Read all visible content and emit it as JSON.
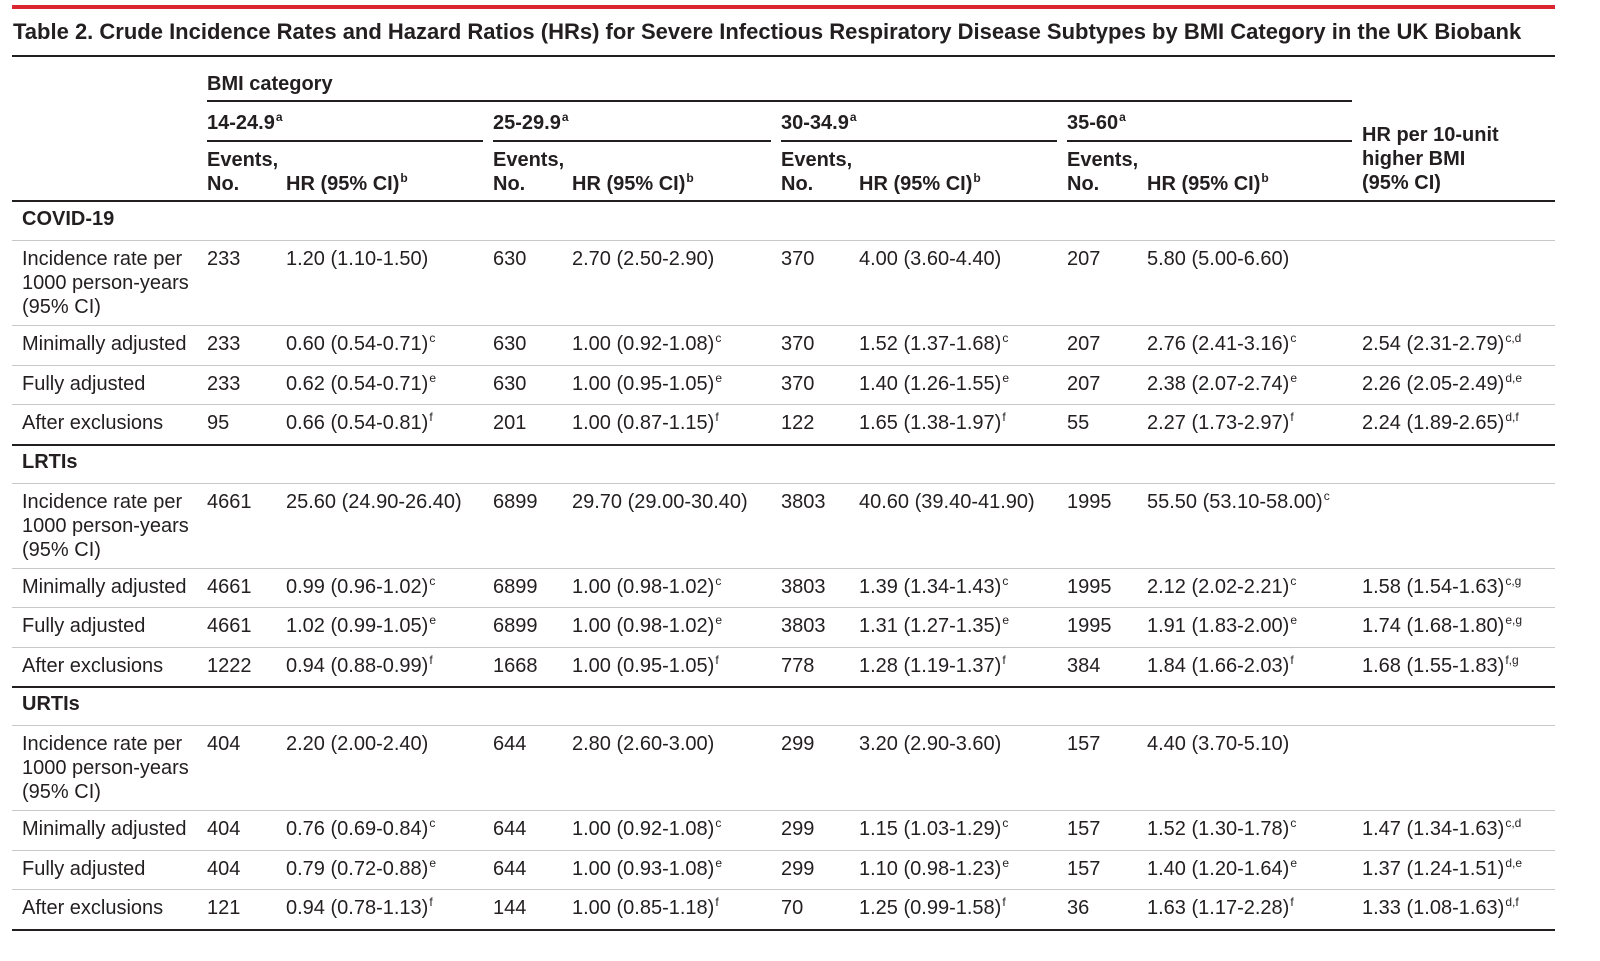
{
  "title": "Table 2. Crude Incidence Rates and Hazard Ratios (HRs) for Severe Infectious Respiratory Disease Subtypes by BMI Category in the UK Biobank",
  "header": {
    "group": "BMI category",
    "categories": [
      {
        "text": "14-24.9",
        "sup": "a"
      },
      {
        "text": "25-29.9",
        "sup": "a"
      },
      {
        "text": "30-34.9",
        "sup": "a"
      },
      {
        "text": "35-60",
        "sup": "a"
      }
    ],
    "events_label": [
      "Events,",
      "No."
    ],
    "hr_label": {
      "text": "HR (95% CI)",
      "sup": "b"
    },
    "trend_label": [
      "HR per 10-unit",
      "higher BMI",
      "(95% CI)"
    ]
  },
  "sections": [
    {
      "name": "COVID-19",
      "rows": [
        {
          "label": "Incidence rate per 1000 person-years (95% CI)",
          "values": [
            {
              "events": 233,
              "hr": "1.20 (1.10-1.50)"
            },
            {
              "events": 630,
              "hr": "2.70 (2.50-2.90)"
            },
            {
              "events": 370,
              "hr": "4.00 (3.60-4.40)"
            },
            {
              "events": 207,
              "hr": "5.80 (5.00-6.60)"
            }
          ]
        },
        {
          "label": "Minimally adjusted",
          "values": [
            {
              "events": 233,
              "hr": "0.60 (0.54-0.71)",
              "sup": "c"
            },
            {
              "events": 630,
              "hr": "1.00 (0.92-1.08)",
              "sup": "c"
            },
            {
              "events": 370,
              "hr": "1.52 (1.37-1.68)",
              "sup": "c"
            },
            {
              "events": 207,
              "hr": "2.76 (2.41-3.16)",
              "sup": "c"
            }
          ],
          "trend": {
            "hr": "2.54 (2.31-2.79)",
            "sup": "c,d"
          }
        },
        {
          "label": "Fully adjusted",
          "values": [
            {
              "events": 233,
              "hr": "0.62 (0.54-0.71)",
              "sup": "e"
            },
            {
              "events": 630,
              "hr": "1.00 (0.95-1.05)",
              "sup": "e"
            },
            {
              "events": 370,
              "hr": "1.40 (1.26-1.55)",
              "sup": "e"
            },
            {
              "events": 207,
              "hr": "2.38 (2.07-2.74)",
              "sup": "e"
            }
          ],
          "trend": {
            "hr": "2.26 (2.05-2.49)",
            "sup": "d,e"
          }
        },
        {
          "label": "After exclusions",
          "values": [
            {
              "events": 95,
              "hr": "0.66 (0.54-0.81)",
              "sup": "f"
            },
            {
              "events": 201,
              "hr": "1.00 (0.87-1.15)",
              "sup": "f"
            },
            {
              "events": 122,
              "hr": "1.65 (1.38-1.97)",
              "sup": "f"
            },
            {
              "events": 55,
              "hr": "2.27 (1.73-2.97)",
              "sup": "f"
            }
          ],
          "trend": {
            "hr": "2.24 (1.89-2.65)",
            "sup": "d,f"
          }
        }
      ]
    },
    {
      "name": "LRTIs",
      "rows": [
        {
          "label": "Incidence rate per 1000 person-years (95% CI)",
          "values": [
            {
              "events": 4661,
              "hr": "25.60 (24.90-26.40)"
            },
            {
              "events": 6899,
              "hr": "29.70 (29.00-30.40)"
            },
            {
              "events": 3803,
              "hr": "40.60 (39.40-41.90)"
            },
            {
              "events": 1995,
              "hr": "55.50 (53.10-58.00)",
              "sup": "c"
            }
          ]
        },
        {
          "label": "Minimally adjusted",
          "values": [
            {
              "events": 4661,
              "hr": "0.99 (0.96-1.02)",
              "sup": "c"
            },
            {
              "events": 6899,
              "hr": "1.00 (0.98-1.02)",
              "sup": "c"
            },
            {
              "events": 3803,
              "hr": "1.39 (1.34-1.43)",
              "sup": "c"
            },
            {
              "events": 1995,
              "hr": "2.12 (2.02-2.21)",
              "sup": "c"
            }
          ],
          "trend": {
            "hr": "1.58 (1.54-1.63)",
            "sup": "c,g"
          }
        },
        {
          "label": "Fully adjusted",
          "values": [
            {
              "events": 4661,
              "hr": "1.02 (0.99-1.05)",
              "sup": "e"
            },
            {
              "events": 6899,
              "hr": "1.00 (0.98-1.02)",
              "sup": "e"
            },
            {
              "events": 3803,
              "hr": "1.31 (1.27-1.35)",
              "sup": "e"
            },
            {
              "events": 1995,
              "hr": "1.91 (1.83-2.00)",
              "sup": "e"
            }
          ],
          "trend": {
            "hr": "1.74 (1.68-1.80)",
            "sup": "e,g"
          }
        },
        {
          "label": "After exclusions",
          "values": [
            {
              "events": 1222,
              "hr": "0.94 (0.88-0.99)",
              "sup": "f"
            },
            {
              "events": 1668,
              "hr": "1.00 (0.95-1.05)",
              "sup": "f"
            },
            {
              "events": 778,
              "hr": "1.28 (1.19-1.37)",
              "sup": "f"
            },
            {
              "events": 384,
              "hr": "1.84 (1.66-2.03)",
              "sup": "f"
            }
          ],
          "trend": {
            "hr": "1.68 (1.55-1.83)",
            "sup": "f,g"
          }
        }
      ]
    },
    {
      "name": "URTIs",
      "rows": [
        {
          "label": "Incidence rate per 1000 person-years (95% CI)",
          "values": [
            {
              "events": 404,
              "hr": "2.20 (2.00-2.40)"
            },
            {
              "events": 644,
              "hr": "2.80 (2.60-3.00)"
            },
            {
              "events": 299,
              "hr": "3.20 (2.90-3.60)"
            },
            {
              "events": 157,
              "hr": "4.40 (3.70-5.10)"
            }
          ]
        },
        {
          "label": "Minimally adjusted",
          "values": [
            {
              "events": 404,
              "hr": "0.76 (0.69-0.84)",
              "sup": "c"
            },
            {
              "events": 644,
              "hr": "1.00 (0.92-1.08)",
              "sup": "c"
            },
            {
              "events": 299,
              "hr": "1.15 (1.03-1.29)",
              "sup": "c"
            },
            {
              "events": 157,
              "hr": "1.52 (1.30-1.78)",
              "sup": "c"
            }
          ],
          "trend": {
            "hr": "1.47 (1.34-1.63)",
            "sup": "c,d"
          }
        },
        {
          "label": "Fully adjusted",
          "values": [
            {
              "events": 404,
              "hr": "0.79 (0.72-0.88)",
              "sup": "e"
            },
            {
              "events": 644,
              "hr": "1.00 (0.93-1.08)",
              "sup": "e"
            },
            {
              "events": 299,
              "hr": "1.10 (0.98-1.23)",
              "sup": "e"
            },
            {
              "events": 157,
              "hr": "1.40 (1.20-1.64)",
              "sup": "e"
            }
          ],
          "trend": {
            "hr": "1.37 (1.24-1.51)",
            "sup": "d,e"
          }
        },
        {
          "label": "After exclusions",
          "values": [
            {
              "events": 121,
              "hr": "0.94 (0.78-1.13)",
              "sup": "f"
            },
            {
              "events": 144,
              "hr": "1.00 (0.85-1.18)",
              "sup": "f"
            },
            {
              "events": 70,
              "hr": "1.25 (0.99-1.58)",
              "sup": "f"
            },
            {
              "events": 36,
              "hr": "1.63 (1.17-2.28)",
              "sup": "f"
            }
          ],
          "trend": {
            "hr": "1.33 (1.08-1.63)",
            "sup": "d,f"
          }
        }
      ]
    }
  ]
}
